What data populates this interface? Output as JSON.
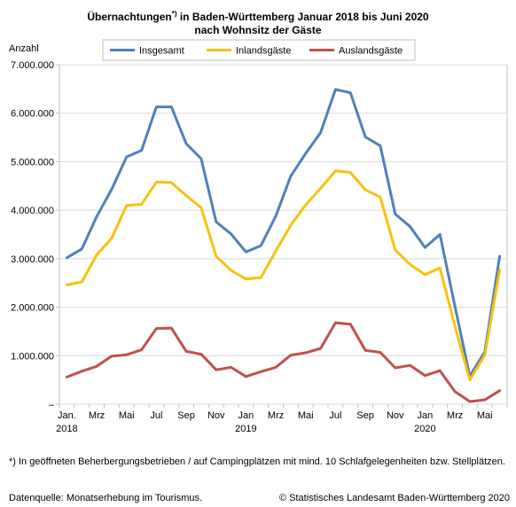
{
  "header": {
    "title_line1": "Übernachtungen",
    "title_sup": "*)",
    "title_line1_rest": " in Baden-Württemberg Januar 2018 bis Juni 2020",
    "title_line2": "nach Wohnsitz der Gäste"
  },
  "footer": {
    "footnote": "*) In geöffneten Beherbergungsbetrieben / auf Campingplätzen mit mind. 10 Schlafgelegenheiten bzw. Stellplätzen.",
    "source": "Datenquelle: Monatserhebung im Tourismus.",
    "copyright": "© Statistisches Landesamt Baden-Württemberg 2020"
  },
  "chart_data": {
    "type": "line",
    "ylabel": "Anzahl",
    "ylim": [
      0,
      7000000
    ],
    "y_ticks": [
      "–",
      "1.000.000",
      "2.000.000",
      "3.000.000",
      "4.000.000",
      "5.000.000",
      "6.000.000",
      "7.000.000"
    ],
    "x_tick_labels": [
      {
        "index": 0,
        "label": "Jan.",
        "year": "2018"
      },
      {
        "index": 2,
        "label": "Mrz"
      },
      {
        "index": 4,
        "label": "Mai"
      },
      {
        "index": 6,
        "label": "Jul"
      },
      {
        "index": 8,
        "label": "Sep"
      },
      {
        "index": 10,
        "label": "Nov"
      },
      {
        "index": 12,
        "label": "Jan",
        "year": "2019"
      },
      {
        "index": 14,
        "label": "Mrz"
      },
      {
        "index": 16,
        "label": "Mai"
      },
      {
        "index": 18,
        "label": "Jul"
      },
      {
        "index": 20,
        "label": "Sep"
      },
      {
        "index": 22,
        "label": "Nov"
      },
      {
        "index": 24,
        "label": "Jan",
        "year": "2020"
      },
      {
        "index": 26,
        "label": "Mrz"
      },
      {
        "index": 28,
        "label": "Mai"
      }
    ],
    "x": [
      "2018-01",
      "2018-02",
      "2018-03",
      "2018-04",
      "2018-05",
      "2018-06",
      "2018-07",
      "2018-08",
      "2018-09",
      "2018-10",
      "2018-11",
      "2018-12",
      "2019-01",
      "2019-02",
      "2019-03",
      "2019-04",
      "2019-05",
      "2019-06",
      "2019-07",
      "2019-08",
      "2019-09",
      "2019-10",
      "2019-11",
      "2019-12",
      "2020-01",
      "2020-02",
      "2020-03",
      "2020-04",
      "2020-05",
      "2020-06"
    ],
    "grid": true,
    "legend_position": "top",
    "series": [
      {
        "name": "Insgesamt",
        "color": "#4f81bd",
        "values": [
          3020000,
          3200000,
          3870000,
          4430000,
          5100000,
          5230000,
          6130000,
          6130000,
          5370000,
          5060000,
          3760000,
          3510000,
          3140000,
          3270000,
          3880000,
          4700000,
          5170000,
          5600000,
          6490000,
          6420000,
          5510000,
          5330000,
          3920000,
          3660000,
          3230000,
          3500000,
          2020000,
          580000,
          1080000,
          3050000
        ]
      },
      {
        "name": "Inlandsgäste",
        "color": "#f5c30e",
        "values": [
          2460000,
          2520000,
          3080000,
          3420000,
          4100000,
          4120000,
          4580000,
          4570000,
          4300000,
          4050000,
          3050000,
          2760000,
          2580000,
          2610000,
          3160000,
          3690000,
          4110000,
          4450000,
          4810000,
          4780000,
          4420000,
          4270000,
          3180000,
          2880000,
          2670000,
          2810000,
          1610000,
          500000,
          1010000,
          2770000
        ]
      },
      {
        "name": "Auslandsgäste",
        "color": "#c0504d",
        "values": [
          560000,
          680000,
          780000,
          990000,
          1020000,
          1120000,
          1560000,
          1570000,
          1090000,
          1030000,
          710000,
          760000,
          570000,
          670000,
          760000,
          1010000,
          1060000,
          1150000,
          1680000,
          1650000,
          1110000,
          1070000,
          750000,
          800000,
          590000,
          690000,
          260000,
          55000,
          90000,
          280000
        ]
      }
    ]
  }
}
